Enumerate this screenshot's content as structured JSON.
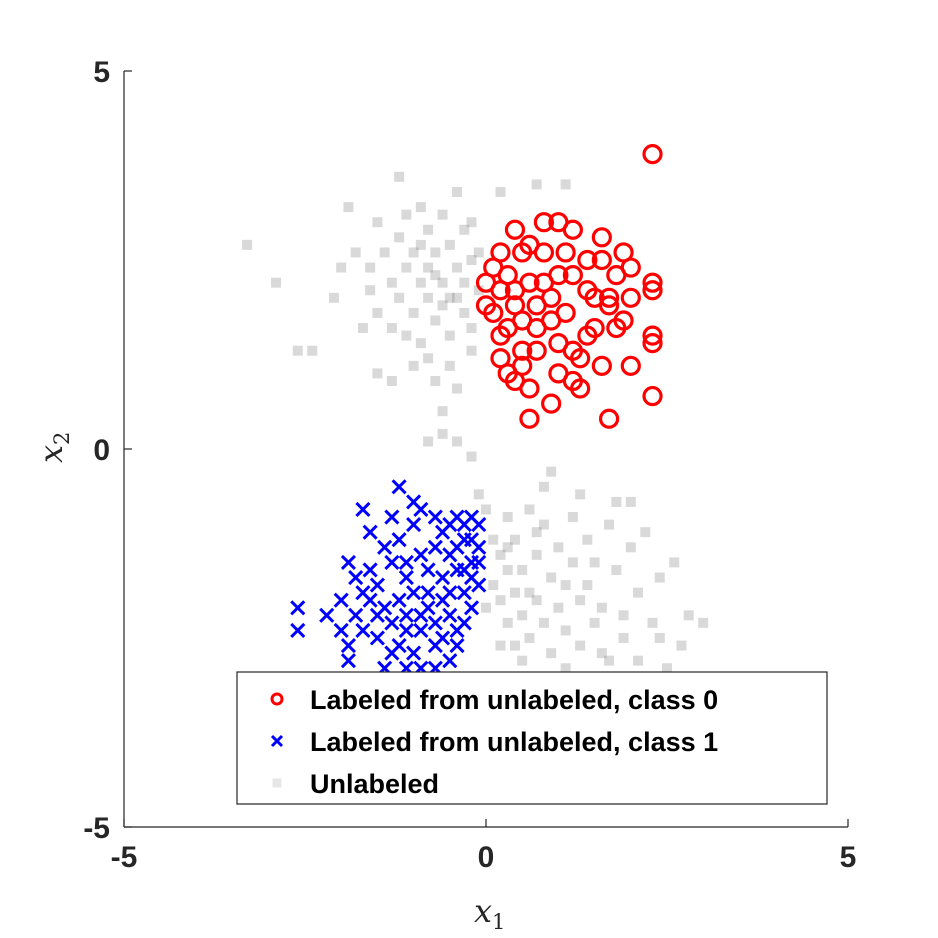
{
  "chart_data": {
    "type": "scatter",
    "xlabel": {
      "base": "x",
      "sub": "1"
    },
    "ylabel": {
      "base": "x",
      "sub": "2"
    },
    "xlim": [
      -5,
      5
    ],
    "ylim": [
      -5,
      5
    ],
    "xticks": [
      -5,
      0,
      5
    ],
    "yticks": [
      -5,
      0,
      5
    ],
    "xtick_labels": [
      "-5",
      "0",
      "5"
    ],
    "ytick_labels": [
      "-5",
      "0",
      "5"
    ],
    "grid": false,
    "legend": {
      "position": "bottom-right",
      "entries": [
        {
          "label": "Labeled from unlabeled, class 0",
          "marker": "circle",
          "color": "#ff0000"
        },
        {
          "label": "Labeled from unlabeled, class 1",
          "marker": "x",
          "color": "#0000ff"
        },
        {
          "label": "Unlabeled",
          "marker": "square",
          "color": "#b0b0b0"
        }
      ]
    },
    "series": [
      {
        "marker": "square",
        "color": "#808080",
        "points": [
          [
            -3.3,
            2.7
          ],
          [
            -2.9,
            2.2
          ],
          [
            -2.6,
            1.3
          ],
          [
            -2.4,
            1.3
          ],
          [
            -2.1,
            2.0
          ],
          [
            -2.0,
            2.4
          ],
          [
            -1.9,
            3.2
          ],
          [
            -1.8,
            2.6
          ],
          [
            -1.7,
            1.6
          ],
          [
            -1.6,
            2.1
          ],
          [
            -1.6,
            2.4
          ],
          [
            -1.5,
            3.0
          ],
          [
            -1.5,
            1.8
          ],
          [
            -1.4,
            2.6
          ],
          [
            -1.3,
            2.2
          ],
          [
            -1.3,
            1.6
          ],
          [
            -1.2,
            2.8
          ],
          [
            -1.2,
            2.0
          ],
          [
            -1.1,
            3.1
          ],
          [
            -1.1,
            2.4
          ],
          [
            -1.0,
            1.8
          ],
          [
            -1.0,
            2.6
          ],
          [
            -0.9,
            2.2
          ],
          [
            -0.9,
            1.4
          ],
          [
            -0.8,
            2.9
          ],
          [
            -0.8,
            2.0
          ],
          [
            -0.8,
            1.2
          ],
          [
            -0.7,
            2.6
          ],
          [
            -0.7,
            2.3
          ],
          [
            -0.7,
            1.7
          ],
          [
            -0.6,
            3.1
          ],
          [
            -0.6,
            2.2
          ],
          [
            -0.6,
            1.9
          ],
          [
            -0.5,
            2.7
          ],
          [
            -0.5,
            1.5
          ],
          [
            -0.5,
            1.1
          ],
          [
            -0.4,
            2.4
          ],
          [
            -0.4,
            2.0
          ],
          [
            -0.4,
            0.8
          ],
          [
            -0.3,
            2.9
          ],
          [
            -0.3,
            2.2
          ],
          [
            -0.3,
            1.8
          ],
          [
            -0.2,
            2.5
          ],
          [
            -0.2,
            1.6
          ],
          [
            -0.2,
            1.3
          ],
          [
            -0.1,
            2.1
          ],
          [
            -0.1,
            2.6
          ],
          [
            -1.5,
            1.0
          ],
          [
            -1.3,
            0.9
          ],
          [
            -1.2,
            3.6
          ],
          [
            -0.9,
            3.2
          ],
          [
            -0.7,
            0.9
          ],
          [
            -0.6,
            0.5
          ],
          [
            -0.4,
            3.4
          ],
          [
            -0.2,
            3.0
          ],
          [
            -0.9,
            2.7
          ],
          [
            -1.1,
            1.5
          ],
          [
            -0.8,
            2.4
          ],
          [
            -0.5,
            2.0
          ],
          [
            -1.0,
            1.1
          ],
          [
            0.2,
            3.4
          ],
          [
            0.7,
            3.5
          ],
          [
            1.1,
            3.5
          ],
          [
            -0.6,
            0.2
          ],
          [
            -0.8,
            0.1
          ],
          [
            -0.4,
            0.1
          ],
          [
            -0.2,
            -0.1
          ],
          [
            -0.1,
            -0.6
          ],
          [
            0.0,
            -0.8
          ],
          [
            0.1,
            -1.2
          ],
          [
            0.1,
            -1.8
          ],
          [
            0.2,
            -1.4
          ],
          [
            0.2,
            -2.0
          ],
          [
            0.3,
            -1.6
          ],
          [
            0.3,
            -2.3
          ],
          [
            0.3,
            -0.9
          ],
          [
            0.4,
            -1.9
          ],
          [
            0.4,
            -2.6
          ],
          [
            0.4,
            -1.2
          ],
          [
            0.5,
            -1.6
          ],
          [
            0.5,
            -2.2
          ],
          [
            0.6,
            -1.9
          ],
          [
            0.6,
            -2.5
          ],
          [
            0.6,
            -0.8
          ],
          [
            0.7,
            -1.4
          ],
          [
            0.7,
            -2.0
          ],
          [
            0.8,
            -2.3
          ],
          [
            0.8,
            -1.0
          ],
          [
            0.9,
            -1.7
          ],
          [
            0.9,
            -2.7
          ],
          [
            1.0,
            -1.3
          ],
          [
            1.0,
            -2.1
          ],
          [
            1.1,
            -1.8
          ],
          [
            1.1,
            -2.4
          ],
          [
            1.2,
            -0.9
          ],
          [
            1.2,
            -1.5
          ],
          [
            1.3,
            -2.0
          ],
          [
            1.3,
            -2.6
          ],
          [
            1.4,
            -1.2
          ],
          [
            1.4,
            -1.8
          ],
          [
            1.5,
            -2.3
          ],
          [
            1.5,
            -1.5
          ],
          [
            1.6,
            -2.1
          ],
          [
            1.7,
            -1.0
          ],
          [
            1.7,
            -2.8
          ],
          [
            1.8,
            -1.6
          ],
          [
            1.9,
            -2.2
          ],
          [
            1.9,
            -2.5
          ],
          [
            2.0,
            -1.3
          ],
          [
            2.1,
            -1.9
          ],
          [
            2.2,
            -1.1
          ],
          [
            2.3,
            -2.3
          ],
          [
            2.4,
            -1.7
          ],
          [
            2.5,
            -2.9
          ],
          [
            2.6,
            -1.5
          ],
          [
            2.8,
            -2.2
          ],
          [
            3.0,
            -2.3
          ],
          [
            2.4,
            -2.5
          ],
          [
            2.1,
            -2.8
          ],
          [
            0.9,
            -0.3
          ],
          [
            0.8,
            -0.5
          ],
          [
            0.0,
            -2.1
          ],
          [
            0.2,
            -2.6
          ],
          [
            0.5,
            -2.8
          ],
          [
            1.1,
            -2.9
          ],
          [
            1.6,
            -2.7
          ],
          [
            2.0,
            -0.7
          ],
          [
            2.7,
            -2.6
          ],
          [
            0.7,
            -1.1
          ],
          [
            0.3,
            -1.3
          ],
          [
            1.3,
            -0.6
          ],
          [
            1.8,
            -0.7
          ]
        ]
      },
      {
        "marker": "circle",
        "color": "#ff0000",
        "points": [
          [
            2.3,
            3.9
          ],
          [
            0.8,
            3.0
          ],
          [
            1.0,
            3.0
          ],
          [
            1.2,
            2.9
          ],
          [
            0.4,
            2.9
          ],
          [
            1.6,
            2.8
          ],
          [
            1.9,
            2.6
          ],
          [
            2.3,
            2.2
          ],
          [
            2.3,
            2.1
          ],
          [
            2.0,
            2.4
          ],
          [
            2.3,
            1.5
          ],
          [
            2.3,
            1.4
          ],
          [
            2.3,
            0.7
          ],
          [
            1.7,
            0.4
          ],
          [
            2.0,
            1.1
          ],
          [
            1.6,
            1.1
          ],
          [
            1.8,
            1.6
          ],
          [
            1.5,
            2.0
          ],
          [
            1.4,
            2.5
          ],
          [
            1.2,
            2.3
          ],
          [
            1.1,
            1.8
          ],
          [
            1.0,
            1.4
          ],
          [
            0.9,
            2.0
          ],
          [
            0.8,
            2.6
          ],
          [
            0.7,
            1.6
          ],
          [
            0.6,
            2.2
          ],
          [
            0.5,
            1.1
          ],
          [
            0.5,
            2.6
          ],
          [
            0.4,
            1.9
          ],
          [
            0.3,
            2.3
          ],
          [
            0.2,
            1.5
          ],
          [
            0.2,
            2.1
          ],
          [
            0.1,
            1.8
          ],
          [
            0.1,
            2.4
          ],
          [
            0.0,
            2.2
          ],
          [
            0.0,
            1.9
          ],
          [
            0.2,
            1.2
          ],
          [
            0.3,
            1.0
          ],
          [
            0.6,
            0.8
          ],
          [
            0.9,
            0.6
          ],
          [
            1.2,
            0.9
          ],
          [
            1.3,
            0.8
          ],
          [
            1.5,
            1.6
          ],
          [
            1.7,
            1.9
          ],
          [
            2.0,
            2.0
          ],
          [
            1.8,
            2.3
          ],
          [
            1.3,
            1.2
          ],
          [
            1.0,
            1.0
          ],
          [
            0.7,
            1.3
          ],
          [
            0.5,
            1.7
          ],
          [
            0.6,
            0.4
          ],
          [
            0.4,
            0.9
          ],
          [
            0.2,
            2.6
          ],
          [
            0.6,
            2.7
          ],
          [
            1.4,
            1.5
          ],
          [
            1.1,
            2.6
          ],
          [
            1.6,
            2.5
          ],
          [
            0.8,
            2.2
          ],
          [
            0.4,
            2.1
          ],
          [
            0.3,
            1.6
          ],
          [
            0.9,
            1.7
          ],
          [
            1.2,
            1.3
          ],
          [
            1.4,
            2.1
          ],
          [
            1.7,
            2.0
          ],
          [
            0.7,
            1.9
          ],
          [
            1.9,
            1.7
          ],
          [
            0.5,
            1.3
          ],
          [
            1.0,
            2.3
          ]
        ]
      },
      {
        "marker": "x",
        "color": "#0000ff",
        "points": [
          [
            -1.2,
            -0.5
          ],
          [
            -1.0,
            -0.7
          ],
          [
            -0.9,
            -0.8
          ],
          [
            -0.7,
            -0.9
          ],
          [
            -0.5,
            -1.0
          ],
          [
            -0.4,
            -0.9
          ],
          [
            -0.3,
            -1.0
          ],
          [
            -0.2,
            -0.9
          ],
          [
            -0.1,
            -1.0
          ],
          [
            -1.7,
            -0.8
          ],
          [
            -1.6,
            -1.1
          ],
          [
            -1.4,
            -1.3
          ],
          [
            -1.3,
            -1.5
          ],
          [
            -1.2,
            -1.2
          ],
          [
            -1.1,
            -1.5
          ],
          [
            -0.9,
            -1.4
          ],
          [
            -0.8,
            -1.6
          ],
          [
            -0.7,
            -1.3
          ],
          [
            -0.6,
            -1.7
          ],
          [
            -0.5,
            -1.4
          ],
          [
            -0.4,
            -1.6
          ],
          [
            -0.3,
            -1.2
          ],
          [
            -0.2,
            -1.5
          ],
          [
            -0.1,
            -1.3
          ],
          [
            -0.1,
            -1.8
          ],
          [
            -1.9,
            -1.5
          ],
          [
            -1.8,
            -1.7
          ],
          [
            -1.7,
            -1.9
          ],
          [
            -1.6,
            -2.0
          ],
          [
            -1.5,
            -1.8
          ],
          [
            -1.4,
            -2.1
          ],
          [
            -1.3,
            -2.3
          ],
          [
            -1.2,
            -2.0
          ],
          [
            -1.1,
            -2.2
          ],
          [
            -1.0,
            -1.9
          ],
          [
            -0.9,
            -2.4
          ],
          [
            -0.8,
            -2.1
          ],
          [
            -0.7,
            -2.3
          ],
          [
            -0.6,
            -2.0
          ],
          [
            -0.5,
            -2.2
          ],
          [
            -0.4,
            -2.4
          ],
          [
            -0.3,
            -1.9
          ],
          [
            -0.2,
            -2.1
          ],
          [
            -0.2,
            -1.7
          ],
          [
            -2.6,
            -2.1
          ],
          [
            -2.6,
            -2.4
          ],
          [
            -2.2,
            -2.2
          ],
          [
            -2.0,
            -2.0
          ],
          [
            -2.0,
            -2.4
          ],
          [
            -1.9,
            -2.6
          ],
          [
            -1.8,
            -2.2
          ],
          [
            -1.7,
            -2.4
          ],
          [
            -1.5,
            -2.5
          ],
          [
            -1.3,
            -2.7
          ],
          [
            -1.2,
            -2.6
          ],
          [
            -1.1,
            -2.9
          ],
          [
            -1.0,
            -2.7
          ],
          [
            -0.9,
            -2.9
          ],
          [
            -0.7,
            -2.6
          ],
          [
            -0.6,
            -2.5
          ],
          [
            -0.5,
            -2.8
          ],
          [
            -0.4,
            -2.6
          ],
          [
            -1.9,
            -2.8
          ],
          [
            -1.5,
            -2.2
          ],
          [
            -1.1,
            -1.7
          ],
          [
            -0.8,
            -1.9
          ],
          [
            -0.4,
            -1.3
          ],
          [
            -0.3,
            -1.6
          ],
          [
            -0.6,
            -1.1
          ],
          [
            -1.0,
            -1.0
          ],
          [
            -0.2,
            -1.2
          ],
          [
            -0.9,
            -2.2
          ],
          [
            -1.4,
            -2.9
          ],
          [
            -1.6,
            -1.6
          ],
          [
            -1.3,
            -0.9
          ],
          [
            -0.7,
            -2.9
          ],
          [
            -0.5,
            -1.9
          ],
          [
            -0.1,
            -1.5
          ],
          [
            -1.1,
            -2.4
          ],
          [
            -0.3,
            -2.3
          ]
        ]
      }
    ]
  }
}
